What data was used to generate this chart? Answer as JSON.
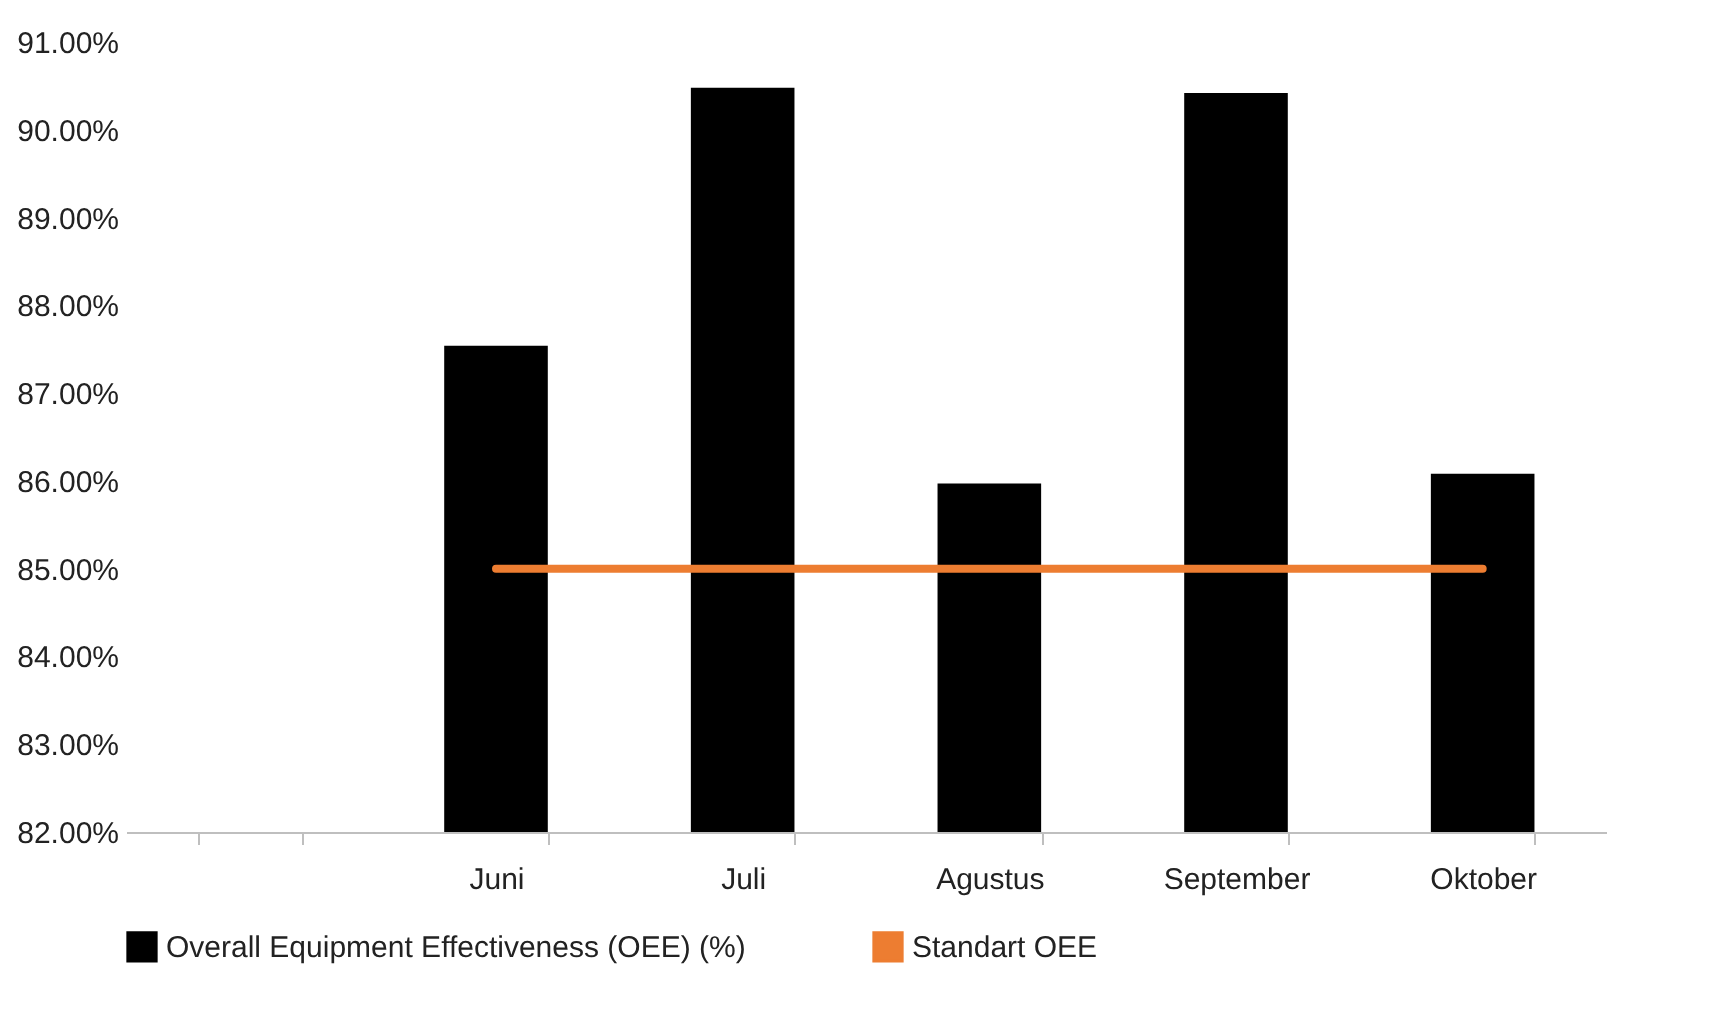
{
  "chart_data": {
    "type": "bar",
    "categories": [
      null,
      "Juni",
      "Juli",
      "Agustus",
      "September",
      "Oktober"
    ],
    "series": [
      {
        "name": "Overall Equipment Effectiveness (OEE) (%)",
        "color": "#000000",
        "values": [
          null,
          87.54,
          90.48,
          85.97,
          90.42,
          86.08
        ]
      },
      {
        "name": "Standart OEE",
        "type": "line",
        "color": "#ed7d31",
        "values": [
          null,
          85,
          85,
          85,
          85,
          85
        ]
      }
    ],
    "ylim": [
      82,
      91
    ],
    "yticks": [
      {
        "value": 82,
        "label": "82.00%"
      },
      {
        "value": 83,
        "label": "83.00%"
      },
      {
        "value": 84,
        "label": "84.00%"
      },
      {
        "value": 85,
        "label": "85.00%"
      },
      {
        "value": 86,
        "label": "86.00%"
      },
      {
        "value": 87,
        "label": "87.00%"
      },
      {
        "value": 88,
        "label": "88.00%"
      },
      {
        "value": 89,
        "label": "89.00%"
      },
      {
        "value": 90,
        "label": "90.00%"
      },
      {
        "value": 91,
        "label": "91.00%"
      }
    ],
    "grid": false,
    "legend": "bottom"
  }
}
